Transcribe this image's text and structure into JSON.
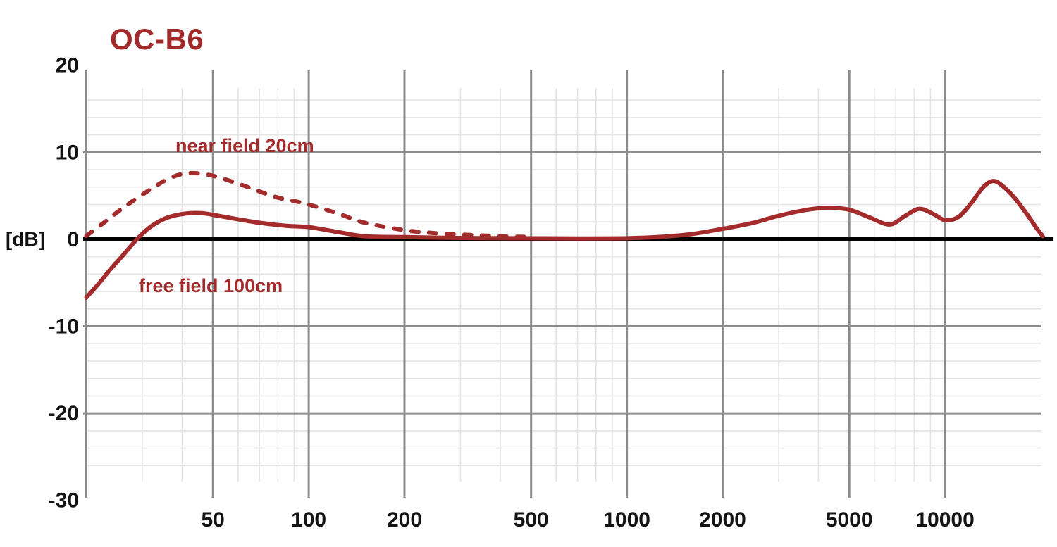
{
  "colors": {
    "curve_red": "#A32B2C",
    "title_red": "#A12B2B",
    "major_grid": "#8C8C8C",
    "minor_grid": "#E4E4E4",
    "zero_line": "#000000",
    "tick_text": "#141414",
    "background": "#FFFFFF"
  },
  "chart_data": {
    "type": "line",
    "title": "OC-B6",
    "ylabel": "[dB]",
    "xlabel": "",
    "x_scale": "log",
    "x_range_hz": [
      20,
      20500
    ],
    "y_range_db": [
      -30,
      20
    ],
    "grid": "on",
    "legend_position": "inline-annotations",
    "x_ticks": [
      {
        "value": 50,
        "label": "50"
      },
      {
        "value": 100,
        "label": "100"
      },
      {
        "value": 200,
        "label": "200"
      },
      {
        "value": 500,
        "label": "500"
      },
      {
        "value": 1000,
        "label": "1000"
      },
      {
        "value": 2000,
        "label": "2000"
      },
      {
        "value": 5000,
        "label": "5000"
      },
      {
        "value": 10000,
        "label": "10000"
      }
    ],
    "y_ticks": [
      {
        "value": 20,
        "label": "20"
      },
      {
        "value": 10,
        "label": "10"
      },
      {
        "value": 0,
        "label": "0"
      },
      {
        "value": -10,
        "label": "-10"
      },
      {
        "value": -20,
        "label": "-20"
      },
      {
        "value": -30,
        "label": "-30"
      }
    ],
    "x_minor_gridlines_hz": [
      30,
      40,
      60,
      70,
      80,
      90,
      300,
      400,
      600,
      700,
      800,
      900,
      3000,
      4000,
      6000,
      7000,
      8000,
      9000
    ],
    "y_minor_gridlines_db": [
      16,
      14,
      12,
      8,
      6,
      4,
      2,
      -2,
      -4,
      -6,
      -8,
      -12,
      -14,
      -16,
      -18,
      -22,
      -24,
      -26
    ],
    "series": [
      {
        "name": "near field 20cm",
        "line_style": "dashed",
        "points_hz_db": [
          [
            20,
            0.4
          ],
          [
            22.5,
            1.8
          ],
          [
            25,
            3.1
          ],
          [
            28,
            4.4
          ],
          [
            32,
            5.8
          ],
          [
            36,
            6.9
          ],
          [
            40,
            7.5
          ],
          [
            44,
            7.6
          ],
          [
            50,
            7.3
          ],
          [
            60,
            6.4
          ],
          [
            70,
            5.5
          ],
          [
            80,
            4.8
          ],
          [
            90,
            4.4
          ],
          [
            100,
            4.0
          ],
          [
            125,
            2.9
          ],
          [
            150,
            1.9
          ],
          [
            200,
            1.05
          ],
          [
            250,
            0.7
          ],
          [
            300,
            0.55
          ],
          [
            400,
            0.35
          ],
          [
            480,
            0.28
          ]
        ]
      },
      {
        "name": "free field 100cm",
        "line_style": "solid",
        "points_hz_db": [
          [
            20,
            -6.7
          ],
          [
            22,
            -5.0
          ],
          [
            24,
            -3.3
          ],
          [
            26,
            -1.9
          ],
          [
            29,
            0.1
          ],
          [
            32,
            1.5
          ],
          [
            36,
            2.5
          ],
          [
            41,
            2.95
          ],
          [
            46,
            3.0
          ],
          [
            52,
            2.7
          ],
          [
            60,
            2.3
          ],
          [
            70,
            1.9
          ],
          [
            85,
            1.55
          ],
          [
            100,
            1.4
          ],
          [
            125,
            0.8
          ],
          [
            150,
            0.35
          ],
          [
            200,
            0.25
          ],
          [
            300,
            0.15
          ],
          [
            450,
            0.12
          ],
          [
            700,
            0.1
          ],
          [
            1000,
            0.12
          ],
          [
            1300,
            0.3
          ],
          [
            1600,
            0.6
          ],
          [
            2000,
            1.2
          ],
          [
            2500,
            1.9
          ],
          [
            3000,
            2.7
          ],
          [
            3700,
            3.4
          ],
          [
            4300,
            3.6
          ],
          [
            5000,
            3.4
          ],
          [
            5800,
            2.5
          ],
          [
            6700,
            1.7
          ],
          [
            7500,
            2.7
          ],
          [
            8300,
            3.5
          ],
          [
            9200,
            2.9
          ],
          [
            10000,
            2.2
          ],
          [
            11000,
            2.55
          ],
          [
            12000,
            4.0
          ],
          [
            13200,
            6.0
          ],
          [
            14200,
            6.7
          ],
          [
            15200,
            6.1
          ],
          [
            16500,
            4.8
          ],
          [
            18000,
            3.0
          ],
          [
            19300,
            1.4
          ],
          [
            20300,
            0.35
          ]
        ]
      }
    ]
  }
}
